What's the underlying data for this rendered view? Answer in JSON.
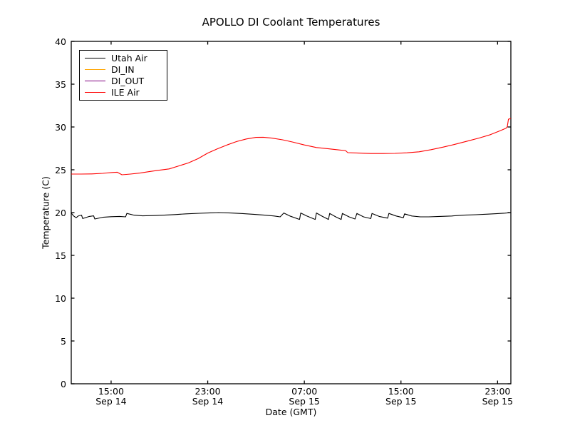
{
  "chart": {
    "title": "APOLLO DI Coolant Temperatures",
    "xlabel": "Date (GMT)",
    "ylabel": "Temperature (C)"
  },
  "chart_data": {
    "type": "line",
    "title": "APOLLO DI Coolant Temperatures",
    "xlabel": "Date (GMT)",
    "ylabel": "Temperature (C)",
    "grid": false,
    "legend_position": "upper left",
    "ylim": [
      0,
      40
    ],
    "y_ticks": [
      0,
      5,
      10,
      15,
      20,
      25,
      30,
      35,
      40
    ],
    "x_axis_unit": "hours_from_Sep14_00:00_GMT",
    "x_range_hours": [
      11.7,
      48.1
    ],
    "x_ticks": [
      {
        "hour": 15,
        "time": "15:00",
        "date": "Sep 14"
      },
      {
        "hour": 23,
        "time": "23:00",
        "date": "Sep 14"
      },
      {
        "hour": 31,
        "time": "07:00",
        "date": "Sep 15"
      },
      {
        "hour": 39,
        "time": "15:00",
        "date": "Sep 15"
      },
      {
        "hour": 47,
        "time": "23:00",
        "date": "Sep 15"
      }
    ],
    "series": [
      {
        "name": "Utah Air",
        "color": "#000000",
        "points": [
          [
            11.7,
            19.95
          ],
          [
            11.9,
            19.6
          ],
          [
            12.1,
            19.4
          ],
          [
            12.3,
            19.62
          ],
          [
            12.55,
            19.7
          ],
          [
            12.65,
            19.3
          ],
          [
            13.2,
            19.55
          ],
          [
            13.55,
            19.62
          ],
          [
            13.65,
            19.25
          ],
          [
            14.3,
            19.45
          ],
          [
            15.0,
            19.52
          ],
          [
            15.7,
            19.55
          ],
          [
            16.2,
            19.5
          ],
          [
            16.3,
            19.9
          ],
          [
            16.9,
            19.7
          ],
          [
            17.6,
            19.62
          ],
          [
            18.5,
            19.65
          ],
          [
            19.4,
            19.7
          ],
          [
            20.3,
            19.77
          ],
          [
            21.2,
            19.85
          ],
          [
            22.3,
            19.92
          ],
          [
            23.2,
            19.97
          ],
          [
            23.9,
            20.0
          ],
          [
            24.9,
            19.95
          ],
          [
            25.9,
            19.88
          ],
          [
            26.9,
            19.78
          ],
          [
            27.7,
            19.7
          ],
          [
            28.5,
            19.6
          ],
          [
            29.0,
            19.5
          ],
          [
            29.3,
            19.95
          ],
          [
            29.8,
            19.6
          ],
          [
            30.6,
            19.2
          ],
          [
            30.7,
            19.95
          ],
          [
            31.2,
            19.6
          ],
          [
            31.9,
            19.2
          ],
          [
            32.0,
            19.95
          ],
          [
            32.5,
            19.55
          ],
          [
            33.0,
            19.2
          ],
          [
            33.1,
            19.9
          ],
          [
            33.6,
            19.5
          ],
          [
            34.05,
            19.2
          ],
          [
            34.15,
            19.9
          ],
          [
            34.7,
            19.5
          ],
          [
            35.2,
            19.25
          ],
          [
            35.35,
            19.9
          ],
          [
            35.9,
            19.5
          ],
          [
            36.5,
            19.3
          ],
          [
            36.6,
            19.9
          ],
          [
            37.2,
            19.55
          ],
          [
            37.9,
            19.35
          ],
          [
            38.0,
            19.9
          ],
          [
            38.6,
            19.6
          ],
          [
            39.2,
            19.4
          ],
          [
            39.3,
            19.85
          ],
          [
            39.9,
            19.6
          ],
          [
            40.6,
            19.5
          ],
          [
            41.3,
            19.5
          ],
          [
            42.2,
            19.55
          ],
          [
            43.2,
            19.6
          ],
          [
            44.2,
            19.7
          ],
          [
            45.2,
            19.75
          ],
          [
            46.2,
            19.82
          ],
          [
            47.0,
            19.88
          ],
          [
            47.6,
            19.93
          ],
          [
            48.1,
            20.0
          ]
        ]
      },
      {
        "name": "DI_IN",
        "color": "#ffa500",
        "points": []
      },
      {
        "name": "DI_OUT",
        "color": "#800080",
        "points": []
      },
      {
        "name": "ILE Air",
        "color": "#ff0000",
        "points": [
          [
            11.7,
            24.5
          ],
          [
            12.5,
            24.5
          ],
          [
            13.4,
            24.52
          ],
          [
            14.3,
            24.58
          ],
          [
            15.1,
            24.68
          ],
          [
            15.5,
            24.72
          ],
          [
            15.9,
            24.42
          ],
          [
            16.6,
            24.5
          ],
          [
            17.4,
            24.62
          ],
          [
            18.2,
            24.8
          ],
          [
            19.0,
            24.95
          ],
          [
            19.8,
            25.1
          ],
          [
            20.6,
            25.45
          ],
          [
            21.4,
            25.8
          ],
          [
            22.2,
            26.3
          ],
          [
            23.0,
            26.95
          ],
          [
            23.8,
            27.45
          ],
          [
            24.6,
            27.9
          ],
          [
            25.4,
            28.3
          ],
          [
            26.2,
            28.6
          ],
          [
            27.0,
            28.78
          ],
          [
            27.6,
            28.8
          ],
          [
            28.3,
            28.7
          ],
          [
            29.2,
            28.5
          ],
          [
            30.0,
            28.25
          ],
          [
            31.0,
            27.9
          ],
          [
            32.0,
            27.6
          ],
          [
            33.0,
            27.45
          ],
          [
            34.0,
            27.3
          ],
          [
            34.4,
            27.25
          ],
          [
            34.6,
            27.0
          ],
          [
            35.5,
            26.95
          ],
          [
            36.5,
            26.9
          ],
          [
            37.5,
            26.9
          ],
          [
            38.5,
            26.92
          ],
          [
            39.5,
            26.98
          ],
          [
            40.5,
            27.1
          ],
          [
            41.5,
            27.35
          ],
          [
            42.5,
            27.65
          ],
          [
            43.5,
            27.98
          ],
          [
            44.5,
            28.35
          ],
          [
            45.5,
            28.72
          ],
          [
            46.4,
            29.1
          ],
          [
            47.2,
            29.55
          ],
          [
            47.7,
            29.85
          ],
          [
            47.8,
            30.0
          ],
          [
            47.9,
            30.9
          ],
          [
            48.1,
            31.0
          ]
        ]
      }
    ]
  }
}
